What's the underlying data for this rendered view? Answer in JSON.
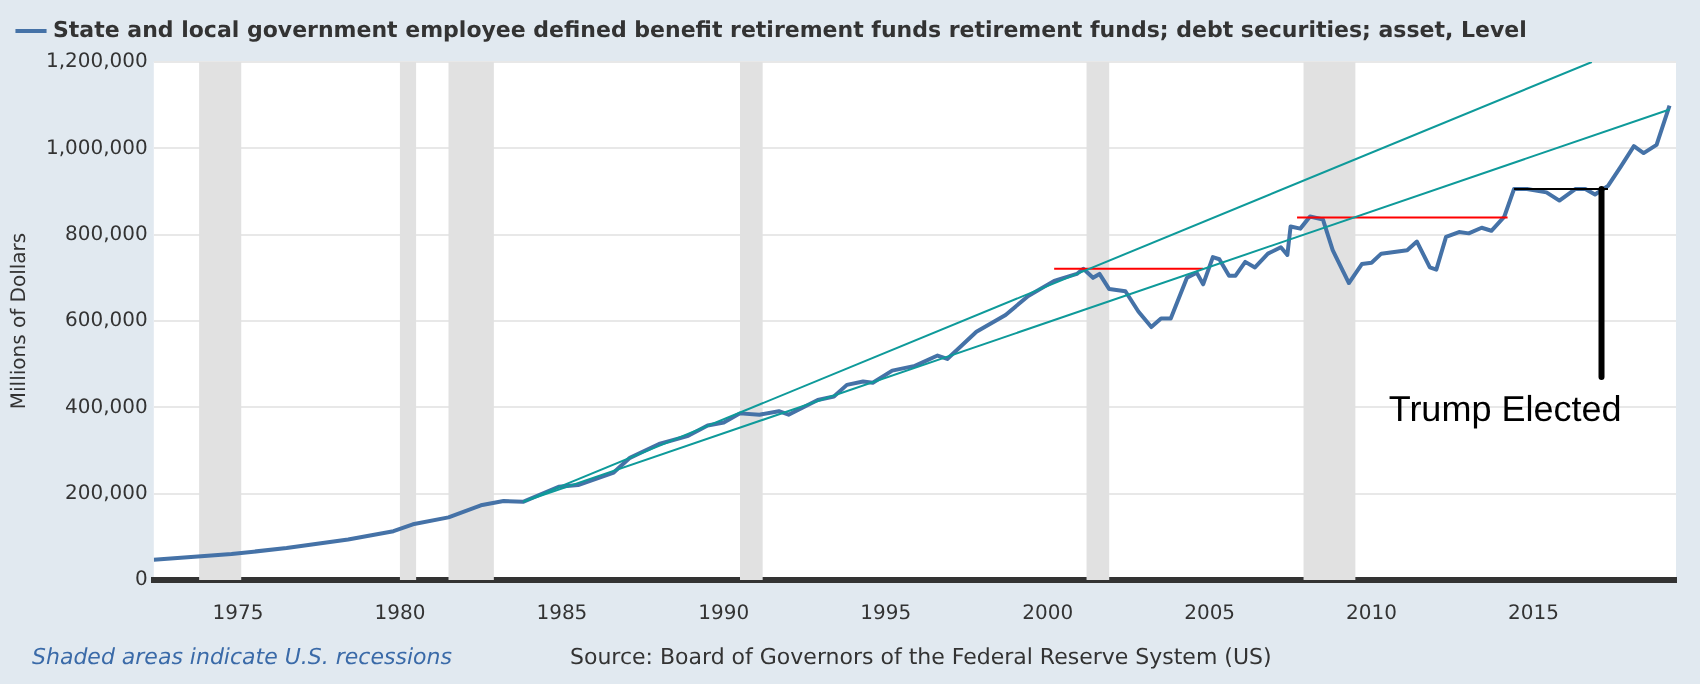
{
  "chart_data": {
    "type": "line",
    "series": [
      {
        "name": "State and local government employee defined benefit retirement funds retirement funds; debt securities; asset, Level",
        "color": "#4572a7",
        "x": [
          1972.4,
          1974.8,
          1976.5,
          1978.4,
          1979.8,
          1980.4,
          1981.5,
          1982.5,
          1983.2,
          1983.8,
          1984.9,
          1985.5,
          1986.6,
          1987.1,
          1988.0,
          1988.9,
          1989.5,
          1990.0,
          1990.5,
          1991.1,
          1991.7,
          1992.0,
          1992.9,
          1993.4,
          1993.8,
          1994.3,
          1994.6,
          1995.2,
          1995.9,
          1996.6,
          1996.9,
          1997.8,
          1998.7,
          1999.4,
          2000.2,
          2000.9,
          2001.1,
          2001.4,
          2001.6,
          2001.9,
          2002.4,
          2002.8,
          2003.2,
          2003.5,
          2003.8,
          2004.3,
          2004.6,
          2004.8,
          2005.1,
          2005.3,
          2005.6,
          2005.8,
          2006.1,
          2006.4,
          2006.8,
          2007.2,
          2007.4,
          2007.5,
          2007.8,
          2008.1,
          2008.5,
          2008.8,
          2009.3,
          2009.7,
          2010.0,
          2010.3,
          2011.1,
          2011.4,
          2011.8,
          2012.0,
          2012.3,
          2012.7,
          2013.0,
          2013.4,
          2013.7,
          2014.1,
          2014.4,
          2014.8,
          2015.4,
          2015.8,
          2016.3,
          2016.6,
          2016.9,
          2017.3,
          2017.7,
          2018.1,
          2018.4,
          2018.8,
          2019.2
        ],
        "values": [
          47000,
          60000,
          74000,
          94000,
          113000,
          129000,
          145000,
          173000,
          183000,
          181000,
          216000,
          220000,
          249000,
          283000,
          315000,
          334000,
          358000,
          365000,
          386000,
          383000,
          391000,
          383000,
          417000,
          425000,
          452000,
          460000,
          457000,
          485000,
          496000,
          520000,
          512000,
          575000,
          614000,
          658000,
          693000,
          709000,
          721000,
          700000,
          709000,
          674000,
          669000,
          622000,
          586000,
          606000,
          606000,
          700000,
          712000,
          685000,
          748000,
          743000,
          705000,
          705000,
          737000,
          724000,
          756000,
          771000,
          753000,
          819000,
          814000,
          842000,
          835000,
          764000,
          688000,
          732000,
          735000,
          756000,
          764000,
          784000,
          724000,
          719000,
          795000,
          806000,
          803000,
          816000,
          809000,
          842000,
          906000,
          906000,
          898000,
          879000,
          906000,
          906000,
          893000,
          913000,
          958000,
          1005000,
          989000,
          1008000,
          1099000
        ]
      },
      {
        "type": "line",
        "color": "#0e9a9a",
        "x": [
          1983.8,
          2016.8
        ],
        "values": [
          181000,
          1200000
        ]
      },
      {
        "type": "line",
        "color": "#0e9a9a",
        "x": [
          1983.8,
          2019.2
        ],
        "values": [
          181000,
          1090000
        ]
      },
      {
        "type": "line",
        "color": "#ff0000",
        "x": [
          2000.2,
          2004.8
        ],
        "values": [
          721000,
          721000
        ]
      },
      {
        "type": "line",
        "color": "#ff0000",
        "x": [
          2007.7,
          2014.2
        ],
        "values": [
          840000,
          840000
        ]
      },
      {
        "type": "line",
        "color": "#000000",
        "x": [
          2014.4,
          2017.3
        ],
        "values": [
          906000,
          906000
        ]
      },
      {
        "type": "line",
        "color": "#000000",
        "x": [
          2017.1,
          2017.1
        ],
        "values": [
          906000,
          470000
        ]
      }
    ],
    "xlim": [
      1972.4,
      2019.4
    ],
    "xticks": [
      1975,
      1980,
      1985,
      1990,
      1995,
      2000,
      2005,
      2010,
      2015
    ],
    "ylim": [
      0,
      1200000
    ],
    "yticks": [
      0,
      {
        "value": 200000,
        "label": "200,000"
      },
      {
        "value": 400000,
        "label": "400,000"
      },
      {
        "value": 600000,
        "label": "600,000"
      },
      {
        "value": 800000,
        "label": "800,000"
      },
      {
        "value": 1000000,
        "label": "1,000,000"
      },
      {
        "value": 1200000,
        "label": "1,200,000"
      }
    ],
    "ylabel": "Millions of Dollars",
    "bands": [
      {
        "axis": "x",
        "from": 1973.8,
        "to": 1975.1,
        "color": "#e1e1e1"
      },
      {
        "axis": "x",
        "from": 1980.0,
        "to": 1980.5,
        "color": "#e1e1e1"
      },
      {
        "axis": "x",
        "from": 1981.5,
        "to": 1982.9,
        "color": "#e1e1e1"
      },
      {
        "axis": "x",
        "from": 1990.5,
        "to": 1991.2,
        "color": "#e1e1e1"
      },
      {
        "axis": "x",
        "from": 2001.2,
        "to": 2001.9,
        "color": "#e1e1e1"
      },
      {
        "axis": "x",
        "from": 2007.9,
        "to": 2009.5,
        "color": "#e1e1e1"
      }
    ],
    "annotations": [
      {
        "text": "Trump Elected",
        "x": 2017.1,
        "y": 470000
      },
      "Shaded areas indicate U.S. recessions",
      "Source: Board of Governors of the Federal Reserve System (US)"
    ],
    "grid": "y",
    "legend": "top left",
    "marker": "none"
  }
}
